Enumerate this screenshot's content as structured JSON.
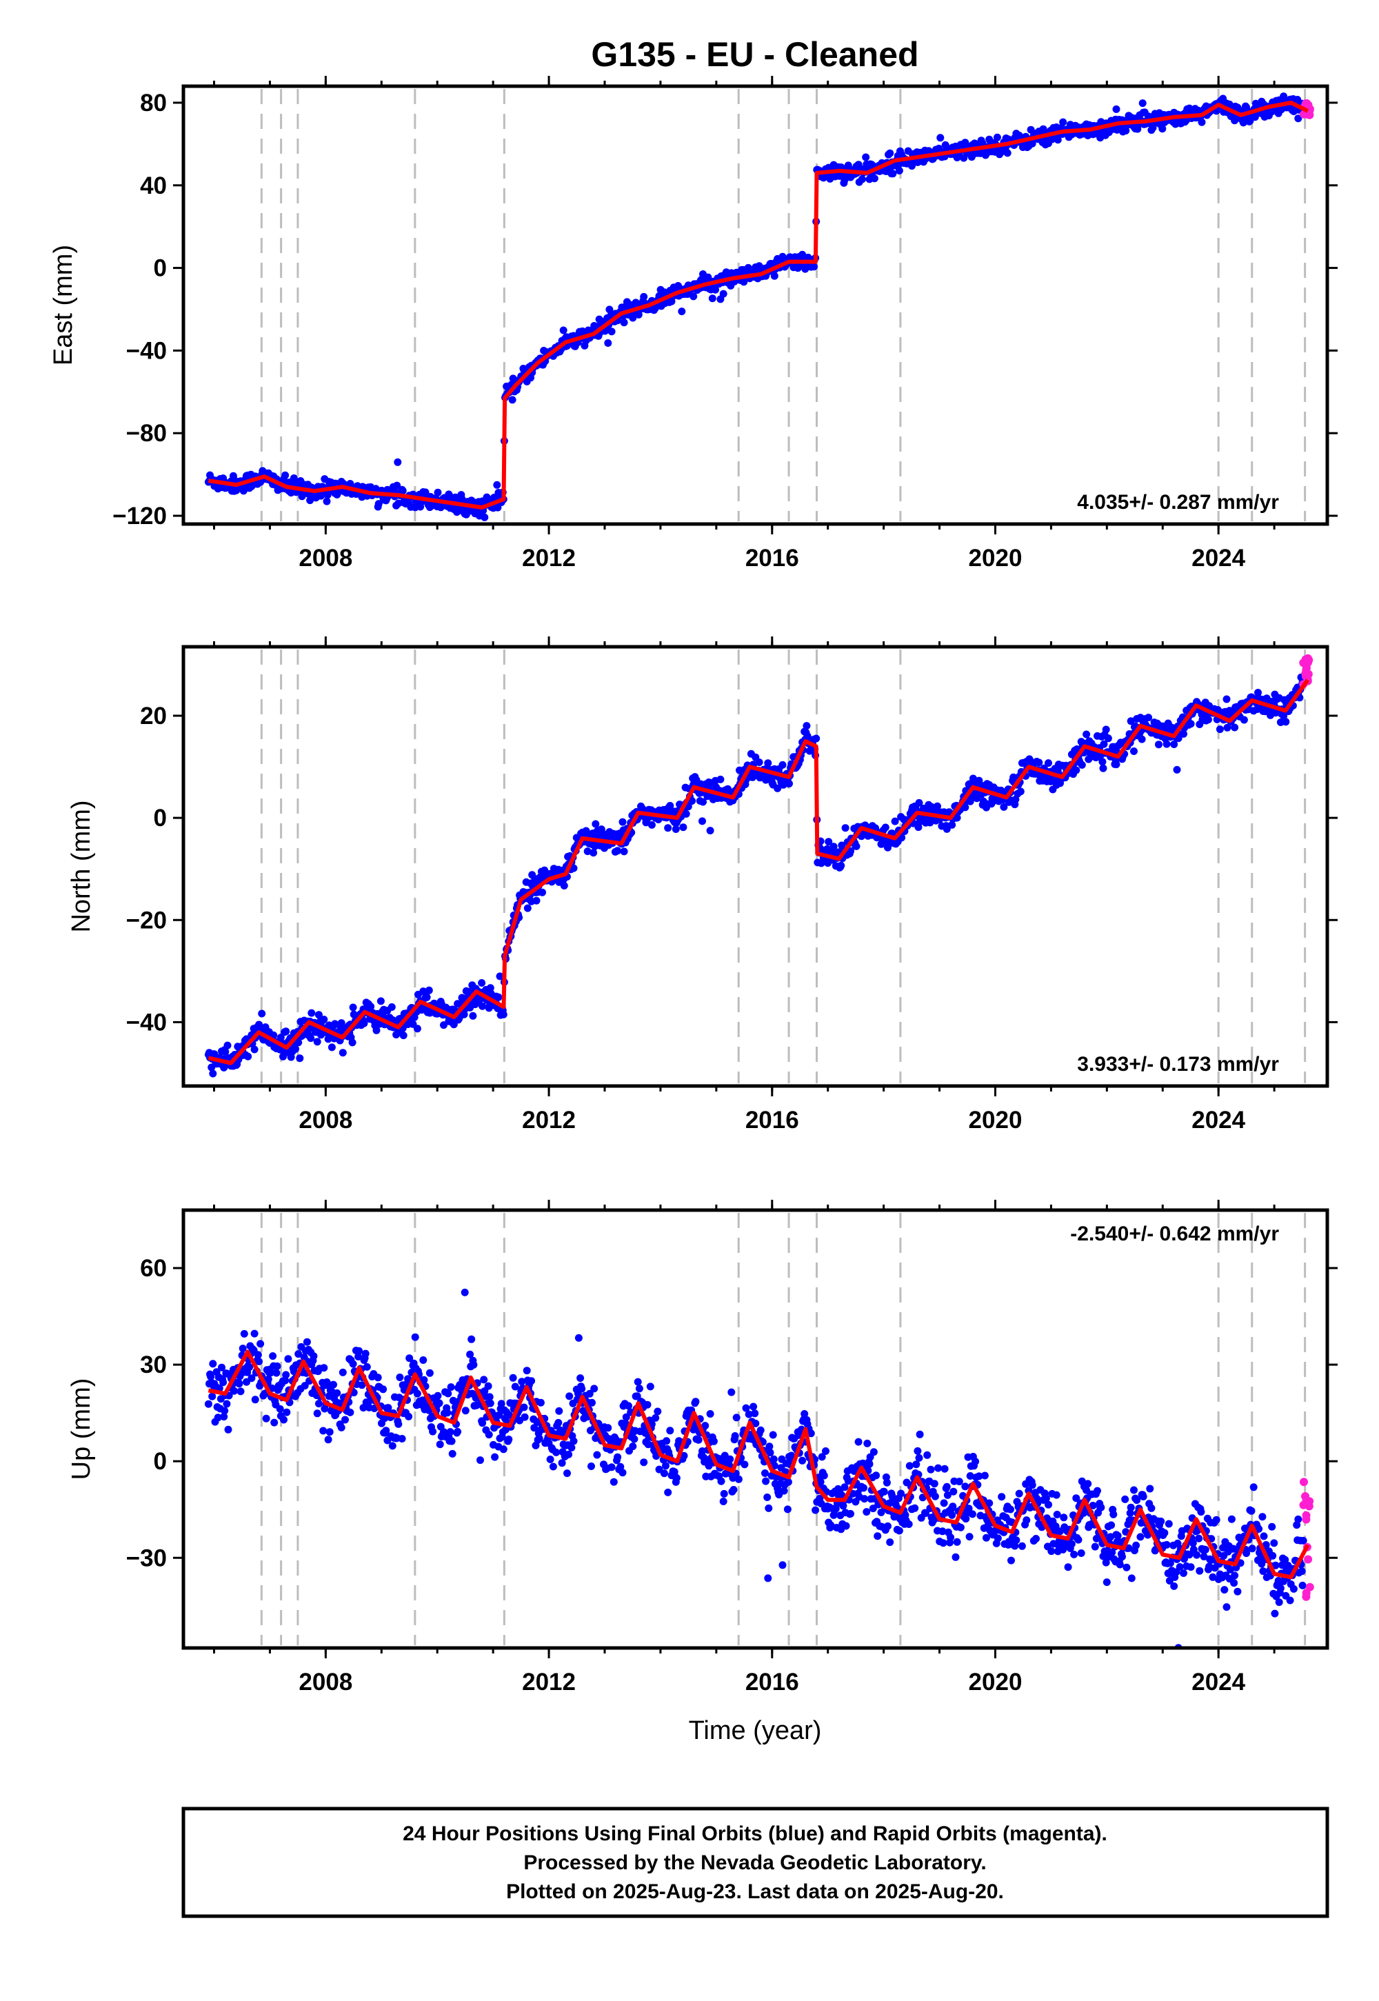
{
  "title": "G135  - EU - Cleaned",
  "xlabel": "Time (year)",
  "colors": {
    "final": "#0000ff",
    "rapid": "#ff1fd0",
    "model": "#ff0000",
    "breaks": "#bdbdbd"
  },
  "footer": [
    "24 Hour Positions Using Final Orbits (blue) and Rapid Orbits (magenta).",
    "Processed by the Nevada Geodetic Laboratory.",
    "Plotted on 2025-Aug-23. Last data on 2025-Aug-20."
  ],
  "chart_data": [
    {
      "type": "scatter",
      "component": "east",
      "ylabel": "East (mm)",
      "rate": "4.035+/- 0.287 mm/yr",
      "xlim": [
        2005.45,
        2025.95
      ],
      "ylim": [
        -124,
        88
      ],
      "xticks": [
        2008,
        2012,
        2016,
        2020,
        2024
      ],
      "xtick_labels": [
        "2008",
        "2012",
        "2016",
        "2020",
        "2024"
      ],
      "yticks": [
        -120,
        -80,
        -40,
        0,
        40,
        80
      ],
      "ytick_labels": [
        "−120",
        "−80",
        "−40",
        "0",
        "40",
        "80"
      ],
      "equipment_breaks": [
        2006.85,
        2007.2,
        2007.5,
        2009.6,
        2011.2,
        2015.4,
        2016.3,
        2016.8,
        2018.3,
        2024.0,
        2024.6,
        2025.55
      ],
      "trend": {
        "x": [
          2005.9,
          2006.4,
          2006.9,
          2007.3,
          2007.8,
          2008.3,
          2008.8,
          2009.3,
          2009.8,
          2010.3,
          2010.8,
          2011.19,
          2011.21,
          2011.4,
          2011.8,
          2012.3,
          2012.8,
          2013.3,
          2013.8,
          2014.3,
          2014.8,
          2015.3,
          2015.8,
          2016.3,
          2016.78,
          2016.8,
          2017.2,
          2017.7,
          2018.2,
          2018.7,
          2019.2,
          2019.7,
          2020.2,
          2020.7,
          2021.2,
          2021.7,
          2022.2,
          2022.7,
          2023.2,
          2023.7,
          2024.0,
          2024.4,
          2024.9,
          2025.3,
          2025.6
        ],
        "y": [
          -103,
          -105,
          -101,
          -106,
          -108,
          -106,
          -109,
          -110,
          -112,
          -114,
          -116,
          -112,
          -63,
          -57,
          -46,
          -36,
          -32,
          -22,
          -18,
          -12,
          -8,
          -5,
          -3,
          3,
          3,
          46,
          47,
          46,
          52,
          54,
          56,
          58,
          60,
          63,
          66,
          67,
          70,
          71,
          73,
          74,
          79,
          74,
          78,
          80,
          76
        ]
      },
      "scatter_sigma": 2.0,
      "rapid": {
        "x_range": [
          2025.52,
          2025.64
        ],
        "y_range": [
          74,
          80
        ]
      }
    },
    {
      "type": "scatter",
      "component": "north",
      "ylabel": "North (mm)",
      "rate": "3.933+/- 0.173 mm/yr",
      "xlim": [
        2005.45,
        2025.95
      ],
      "ylim": [
        -52.5,
        33.5
      ],
      "xticks": [
        2008,
        2012,
        2016,
        2020,
        2024
      ],
      "xtick_labels": [
        "2008",
        "2012",
        "2016",
        "2020",
        "2024"
      ],
      "yticks": [
        -40,
        -20,
        0,
        20
      ],
      "ytick_labels": [
        "−40",
        "−20",
        "0",
        "20"
      ],
      "equipment_breaks": [
        2006.85,
        2007.2,
        2007.5,
        2009.6,
        2011.2,
        2015.4,
        2016.3,
        2016.8,
        2018.3,
        2024.0,
        2024.6,
        2025.55
      ],
      "trend": {
        "x": [
          2005.9,
          2006.3,
          2006.8,
          2007.3,
          2007.7,
          2008.3,
          2008.7,
          2009.3,
          2009.7,
          2010.3,
          2010.7,
          2011.19,
          2011.21,
          2011.5,
          2012.0,
          2012.3,
          2012.6,
          2013.3,
          2013.6,
          2014.3,
          2014.6,
          2015.3,
          2015.6,
          2016.3,
          2016.6,
          2016.79,
          2016.81,
          2017.2,
          2017.6,
          2018.2,
          2018.6,
          2019.2,
          2019.6,
          2020.2,
          2020.6,
          2021.2,
          2021.6,
          2022.2,
          2022.6,
          2023.2,
          2023.6,
          2024.2,
          2024.6,
          2025.2,
          2025.6
        ],
        "y": [
          -47,
          -48,
          -42,
          -45,
          -40,
          -43,
          -38,
          -41,
          -36,
          -39,
          -34,
          -37,
          -27,
          -16,
          -12,
          -11,
          -4,
          -5,
          1,
          0,
          6,
          4,
          10,
          8,
          15,
          14,
          -7,
          -8,
          -2,
          -4,
          1,
          0,
          6,
          4,
          10,
          8,
          14,
          12,
          18,
          16,
          22,
          19,
          23,
          21,
          27
        ]
      },
      "scatter_sigma": 1.2,
      "rapid": {
        "x_range": [
          2025.52,
          2025.64
        ],
        "y_range": [
          26,
          32
        ]
      }
    },
    {
      "type": "scatter",
      "component": "up",
      "ylabel": "Up (mm)",
      "rate": "-2.540+/- 0.642 mm/yr",
      "xlim": [
        2005.45,
        2025.95
      ],
      "ylim": [
        -58,
        78
      ],
      "xticks": [
        2008,
        2012,
        2016,
        2020,
        2024
      ],
      "xtick_labels": [
        "2008",
        "2012",
        "2016",
        "2020",
        "2024"
      ],
      "yticks": [
        -30,
        0,
        30,
        60
      ],
      "ytick_labels": [
        "−30",
        "0",
        "30",
        "60"
      ],
      "equipment_breaks": [
        2006.85,
        2007.2,
        2007.5,
        2009.6,
        2011.2,
        2015.4,
        2016.3,
        2016.8,
        2018.3,
        2024.0,
        2024.6,
        2025.55
      ],
      "trend": {
        "x": [
          2005.9,
          2006.2,
          2006.6,
          2007.0,
          2007.3,
          2007.6,
          2008.0,
          2008.3,
          2008.6,
          2009.0,
          2009.3,
          2009.6,
          2010.0,
          2010.3,
          2010.6,
          2011.0,
          2011.3,
          2011.6,
          2012.0,
          2012.3,
          2012.6,
          2013.0,
          2013.3,
          2013.6,
          2014.0,
          2014.3,
          2014.6,
          2015.0,
          2015.3,
          2015.6,
          2016.0,
          2016.3,
          2016.6,
          2016.8,
          2017.0,
          2017.3,
          2017.6,
          2018.0,
          2018.3,
          2018.6,
          2019.0,
          2019.3,
          2019.6,
          2020.0,
          2020.3,
          2020.6,
          2021.0,
          2021.3,
          2021.6,
          2022.0,
          2022.3,
          2022.6,
          2023.0,
          2023.3,
          2023.6,
          2024.0,
          2024.3,
          2024.6,
          2025.0,
          2025.3,
          2025.6
        ],
        "y": [
          22,
          21,
          34,
          21,
          19,
          31,
          18,
          16,
          29,
          15,
          14,
          27,
          14,
          12,
          26,
          12,
          11,
          23,
          8,
          7,
          20,
          5,
          4,
          18,
          2,
          0,
          15,
          -1,
          -3,
          12,
          -3,
          -5,
          10,
          -8,
          -12,
          -12,
          -2,
          -14,
          -16,
          -5,
          -18,
          -19,
          -7,
          -20,
          -22,
          -10,
          -23,
          -24,
          -12,
          -26,
          -27,
          -15,
          -29,
          -30,
          -18,
          -31,
          -32,
          -20,
          -35,
          -36,
          -26
        ]
      },
      "scatter_sigma": 5.0,
      "rapid": {
        "x_range": [
          2025.52,
          2025.64
        ],
        "y_range": [
          -44,
          -6
        ]
      }
    }
  ]
}
